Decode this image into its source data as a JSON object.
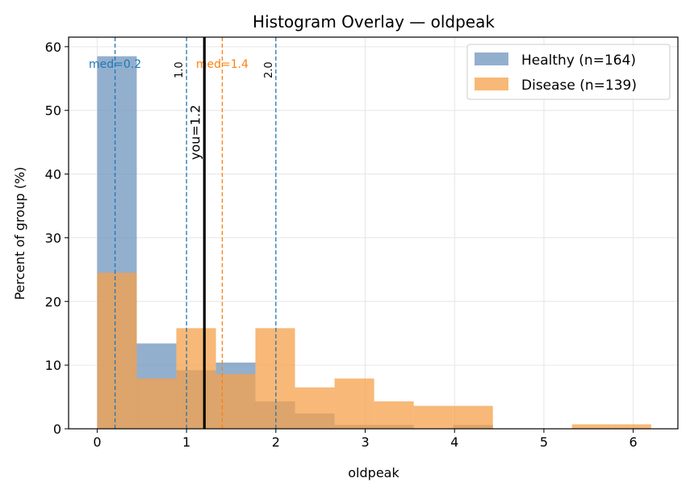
{
  "colors": {
    "healthy": "#7498c0",
    "disease": "#f5a04a",
    "healthy_line": "#1f77b4",
    "disease_line": "#ff7f0e",
    "you_line": "#000000",
    "grid": "#e6e6e6"
  },
  "chart_data": {
    "type": "histogram",
    "title": "Histogram Overlay — oldpeak",
    "xlabel": "oldpeak",
    "ylabel": "Percent of group (%)",
    "xlim": [
      -0.32,
      6.5
    ],
    "ylim": [
      0,
      61.5
    ],
    "xticks": [
      0,
      1,
      2,
      3,
      4,
      5,
      6
    ],
    "yticks": [
      0,
      10,
      20,
      30,
      40,
      50,
      60
    ],
    "grid": true,
    "legend_position": "top-right",
    "bin_edges": [
      0,
      0.443,
      0.886,
      1.329,
      1.771,
      2.214,
      2.657,
      3.1,
      3.543,
      3.986,
      4.429,
      4.871,
      5.314,
      5.757,
      6.2
    ],
    "series": [
      {
        "name": "Healthy (n=164)",
        "key": "healthy",
        "values": [
          58.5,
          13.4,
          9.2,
          10.4,
          4.3,
          2.4,
          0.6,
          0.6,
          0,
          0.6,
          0,
          0,
          0,
          0
        ]
      },
      {
        "name": "Disease (n=139)",
        "key": "disease",
        "values": [
          24.5,
          7.9,
          15.8,
          8.6,
          15.8,
          6.5,
          7.9,
          4.3,
          3.6,
          3.6,
          0,
          0,
          0.7,
          0.7
        ]
      }
    ],
    "reference_lines": [
      {
        "x": 0.2,
        "label": "med=0.2",
        "style": "dashed",
        "color_key": "healthy_line",
        "label_kind": "median"
      },
      {
        "x": 1.4,
        "label": "med=1.4",
        "style": "dashed",
        "color_key": "disease_line",
        "label_kind": "median"
      },
      {
        "x": 1.0,
        "label": "1.0",
        "style": "dashed",
        "color_key": "healthy_line",
        "label_kind": "threshold"
      },
      {
        "x": 2.0,
        "label": "2.0",
        "style": "dashed",
        "color_key": "healthy_line",
        "label_kind": "threshold"
      },
      {
        "x": 1.2,
        "label": "you=1.2",
        "style": "solid",
        "color_key": "you_line",
        "label_kind": "you"
      }
    ]
  }
}
